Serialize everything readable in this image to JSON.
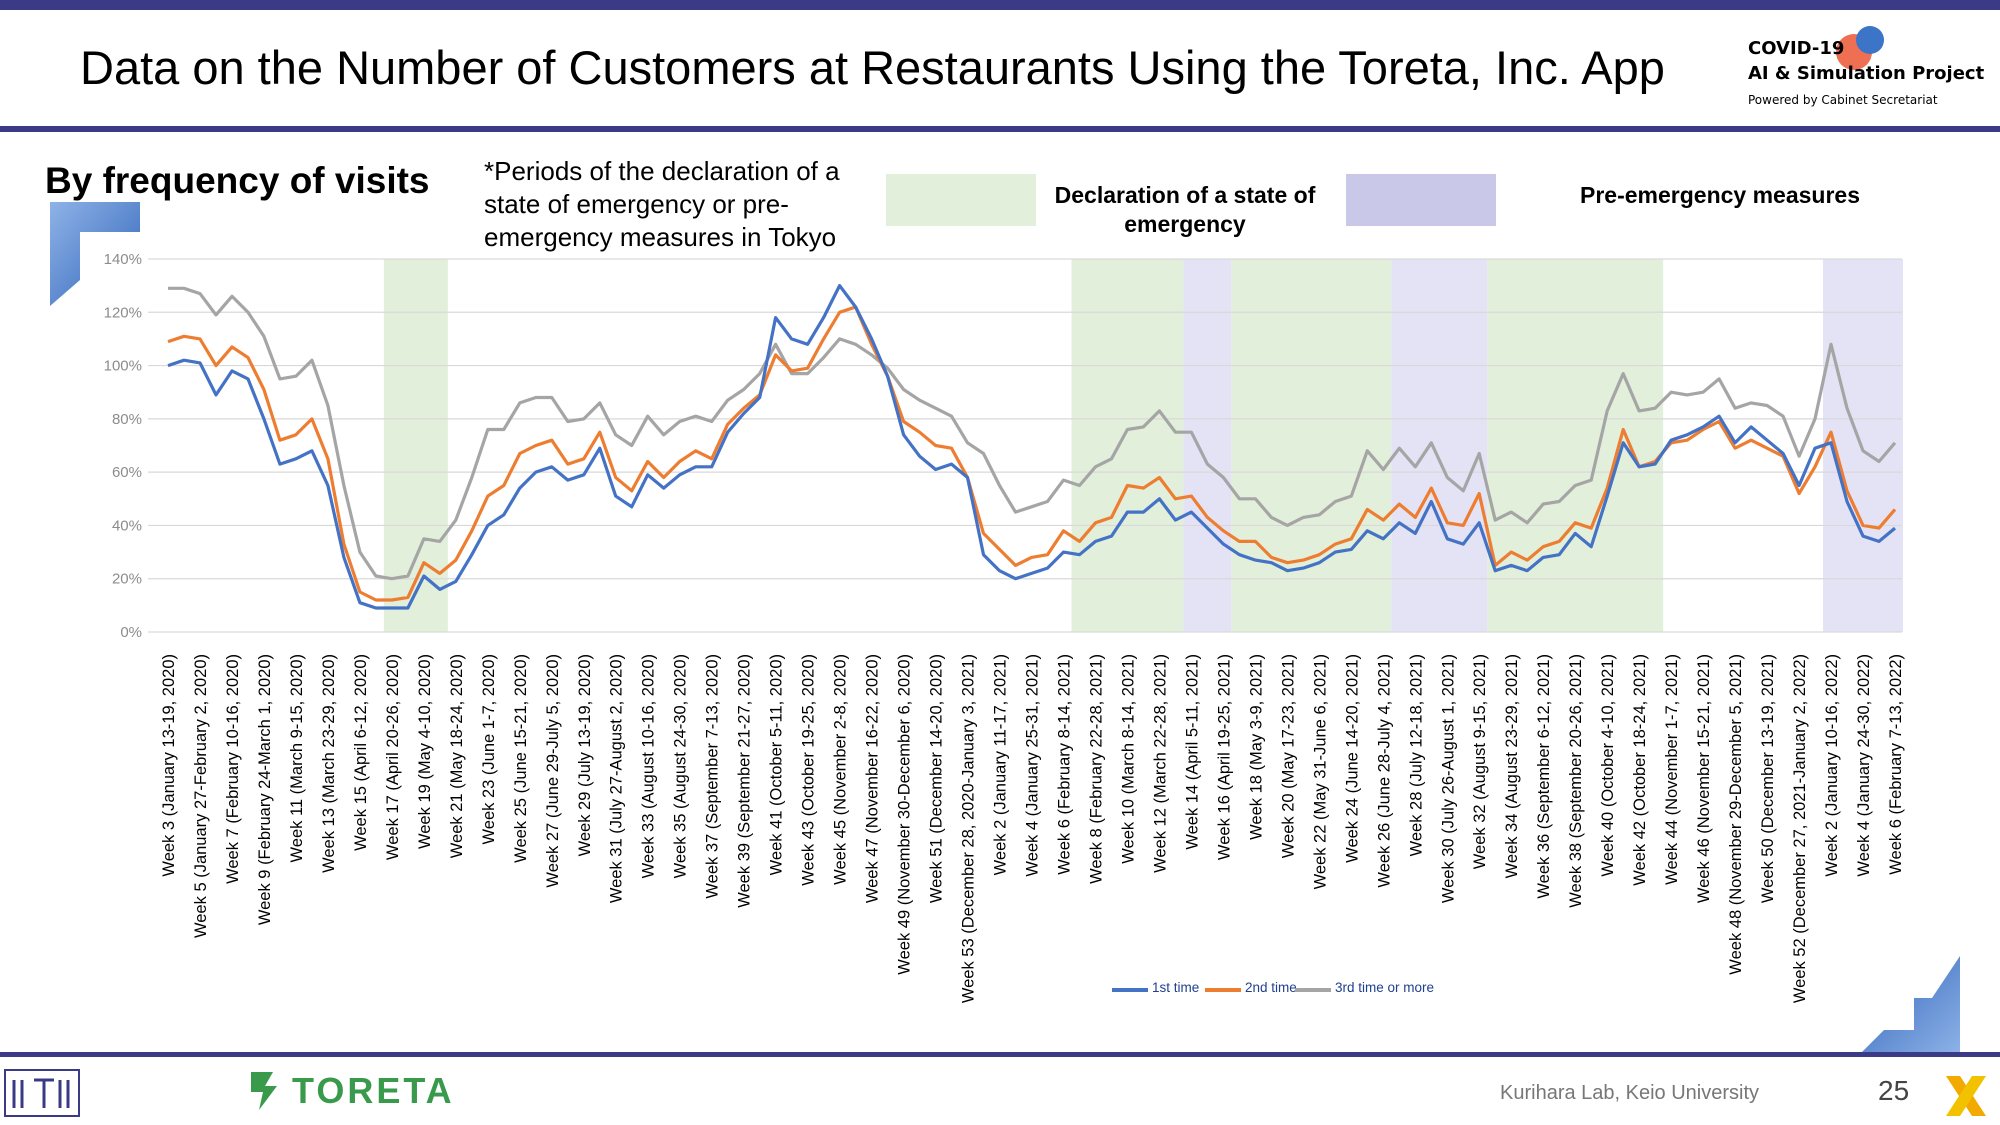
{
  "header": {
    "title": "Data on the Number of Customers at Restaurants Using the Toreta, Inc. App",
    "project_line1": "COVID-19",
    "project_line2": "AI & Simulation Project",
    "project_line3": "Powered by Cabinet Secretariat"
  },
  "subtitle": "By frequency of visits",
  "note": "*Periods of the declaration of a state of emergency or pre-emergency measures in Tokyo",
  "period_legend": {
    "emergency": "Declaration of a state of emergency",
    "pre_emergency": "Pre-emergency measures"
  },
  "footer": {
    "lab": "Kurihara Lab, Keio University",
    "page": "25",
    "brand": "TORETA"
  },
  "colors": {
    "brand_navy": "#3b3a86",
    "first_time": "#4472c4",
    "second_time": "#ed7d31",
    "third_time": "#a5a5a5",
    "emergency_shade": "#e2efda",
    "pre_emergency_shade": "#e4e3f5"
  },
  "chart_data": {
    "type": "line",
    "y_tick_labels": [
      "0%",
      "20%",
      "40%",
      "60%",
      "80%",
      "100%",
      "120%",
      "140%"
    ],
    "ylim": [
      0,
      140
    ],
    "grid": true,
    "legend_position": "bottom",
    "x_labels": [
      "Week 3 (January 13-19, 2020)",
      "Week 5 (January 27-February 2, 2020)",
      "Week 7 (February 10-16, 2020)",
      "Week 9 (February 24-March 1, 2020)",
      "Week 11 (March 9-15, 2020)",
      "Week 13 (March 23-29, 2020)",
      "Week 15 (April 6-12, 2020)",
      "Week 17 (April 20-26, 2020)",
      "Week 19 (May 4-10, 2020)",
      "Week 21 (May 18-24, 2020)",
      "Week 23 (June 1-7, 2020)",
      "Week 25 (June 15-21, 2020)",
      "Week 27 (June 29-July 5, 2020)",
      "Week 29 (July 13-19, 2020)",
      "Week 31 (July 27-August 2, 2020)",
      "Week 33 (August 10-16, 2020)",
      "Week 35 (August 24-30, 2020)",
      "Week 37 (September 7-13, 2020)",
      "Week 39 (September 21-27, 2020)",
      "Week 41 (October 5-11, 2020)",
      "Week 43 (October 19-25, 2020)",
      "Week 45 (November 2-8, 2020)",
      "Week 47 (November 16-22, 2020)",
      "Week 49 (November 30-December 6, 2020)",
      "Week 51 (December 14-20, 2020)",
      "Week 53 (December 28, 2020-January 3, 2021)",
      "Week 2 (January 11-17, 2021)",
      "Week 4 (January 25-31, 2021)",
      "Week 6 (February 8-14, 2021)",
      "Week 8 (February 22-28, 2021)",
      "Week 10 (March 8-14, 2021)",
      "Week 12 (March 22-28, 2021)",
      "Week 14 (April 5-11, 2021)",
      "Week 16 (April 19-25, 2021)",
      "Week 18 (May 3-9, 2021)",
      "Week 20 (May 17-23, 2021)",
      "Week 22 (May 31-June 6, 2021)",
      "Week 24 (June 14-20, 2021)",
      "Week 26 (June 28-July 4, 2021)",
      "Week 28 (July 12-18, 2021)",
      "Week 30 (July 26-August 1, 2021)",
      "Week 32 (August 9-15, 2021)",
      "Week 34 (August 23-29, 2021)",
      "Week 36 (September 6-12, 2021)",
      "Week 38 (September 20-26, 2021)",
      "Week 40 (October 4-10, 2021)",
      "Week 42 (October 18-24, 2021)",
      "Week 44 (November 1-7, 2021)",
      "Week 46 (November 15-21, 2021)",
      "Week 48 (November 29-December 5, 2021)",
      "Week 50 (December 13-19, 2021)",
      "Week 52 (December 27, 2021-January 2, 2022)",
      "Week 2 (January 10-16, 2022)",
      "Week 4 (January 24-30, 2022)",
      "Week 6 (February 7-13, 2022)"
    ],
    "series": [
      {
        "name": "1st time",
        "color": "#4472c4",
        "values": [
          100,
          102,
          101,
          89,
          98,
          95,
          80,
          63,
          65,
          68,
          55,
          28,
          11,
          9,
          9,
          9,
          21,
          16,
          19,
          29,
          40,
          44,
          54,
          60,
          62,
          57,
          59,
          69,
          51,
          47,
          59,
          54,
          59,
          62,
          62,
          75,
          82,
          88,
          118,
          110,
          108,
          118,
          130,
          122,
          110,
          96,
          74,
          66,
          61,
          63,
          58,
          29,
          23,
          20,
          22,
          24,
          30,
          29,
          34,
          36,
          45,
          45,
          50,
          42,
          45,
          39,
          33,
          29,
          27,
          26,
          23,
          24,
          26,
          30,
          31,
          38,
          35,
          41,
          37,
          49,
          35,
          33,
          41,
          23,
          25,
          23,
          28,
          29,
          37,
          32,
          51,
          71,
          62,
          63,
          72,
          74,
          77,
          81,
          71,
          77,
          72,
          67,
          55,
          69,
          71,
          49,
          36,
          34,
          39
        ]
      },
      {
        "name": "2nd time",
        "color": "#ed7d31",
        "values": [
          109,
          111,
          110,
          100,
          107,
          103,
          91,
          72,
          74,
          80,
          65,
          33,
          15,
          12,
          12,
          13,
          26,
          22,
          27,
          38,
          51,
          55,
          67,
          70,
          72,
          63,
          65,
          75,
          58,
          53,
          64,
          58,
          64,
          68,
          65,
          78,
          84,
          89,
          104,
          98,
          99,
          110,
          120,
          122,
          108,
          96,
          79,
          75,
          70,
          69,
          58,
          37,
          31,
          25,
          28,
          29,
          38,
          34,
          41,
          43,
          55,
          54,
          58,
          50,
          51,
          43,
          38,
          34,
          34,
          28,
          26,
          27,
          29,
          33,
          35,
          46,
          42,
          48,
          43,
          54,
          41,
          40,
          52,
          25,
          30,
          27,
          32,
          34,
          41,
          39,
          54,
          76,
          62,
          64,
          71,
          72,
          76,
          79,
          69,
          72,
          69,
          66,
          52,
          62,
          75,
          53,
          40,
          39,
          46
        ]
      },
      {
        "name": "3rd time or more",
        "color": "#a5a5a5",
        "values": [
          129,
          129,
          127,
          119,
          126,
          120,
          111,
          95,
          96,
          102,
          85,
          55,
          30,
          21,
          20,
          21,
          35,
          34,
          42,
          58,
          76,
          76,
          86,
          88,
          88,
          79,
          80,
          86,
          74,
          70,
          81,
          74,
          79,
          81,
          79,
          87,
          91,
          97,
          108,
          97,
          97,
          103,
          110,
          108,
          104,
          99,
          91,
          87,
          84,
          81,
          71,
          67,
          55,
          45,
          47,
          49,
          57,
          55,
          62,
          65,
          76,
          77,
          83,
          75,
          75,
          63,
          58,
          50,
          50,
          43,
          40,
          43,
          44,
          49,
          51,
          68,
          61,
          69,
          62,
          71,
          58,
          53,
          67,
          42,
          45,
          41,
          48,
          49,
          55,
          57,
          83,
          97,
          83,
          84,
          90,
          89,
          90,
          95,
          84,
          86,
          85,
          81,
          66,
          80,
          108,
          84,
          68,
          64,
          71
        ]
      }
    ],
    "emergency_periods_week_index": [
      [
        14,
        17
      ],
      [
        57,
        63
      ],
      [
        67,
        76
      ],
      [
        83,
        93
      ]
    ],
    "pre_emergency_periods_week_index": [
      [
        64,
        66
      ],
      [
        77,
        82
      ],
      [
        104,
        108
      ]
    ]
  }
}
